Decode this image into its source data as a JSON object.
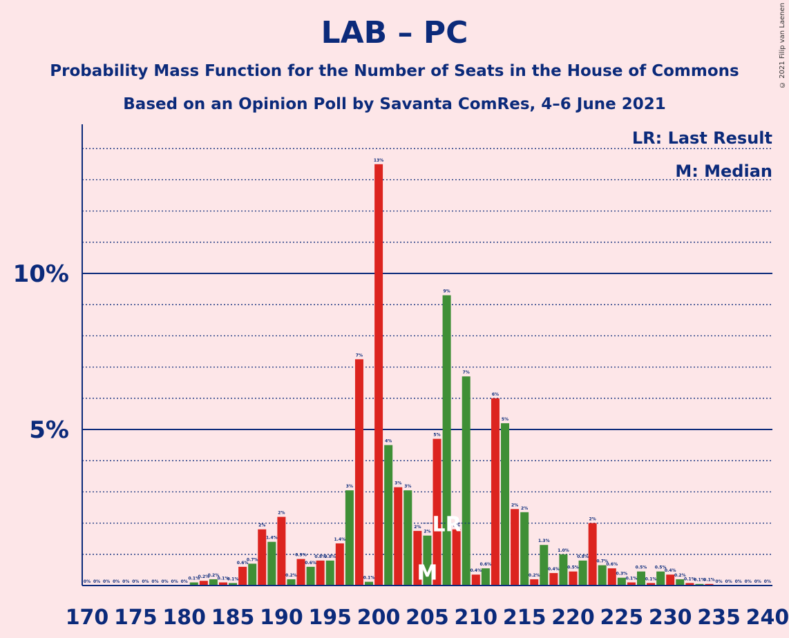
{
  "title": "LAB – PC",
  "subtitle1": "Probability Mass Function for the Number of Seats in the House of Commons",
  "subtitle2": "Based on an Opinion Poll by Savanta ComRes, 4–6 June 2021",
  "copyright": "© 2021 Filip van Laenen",
  "legend": {
    "last_result": "LR: Last Result",
    "median": "M: Median"
  },
  "colors": {
    "background": "#fde6e8",
    "text": "#0b2a7a",
    "red": "#dc241f",
    "green": "#3f8f36",
    "axis": "#0b2a7a"
  },
  "chart_data": {
    "type": "bar",
    "x": [
      170,
      171,
      172,
      173,
      174,
      175,
      176,
      177,
      178,
      179,
      180,
      181,
      182,
      183,
      184,
      185,
      186,
      187,
      188,
      189,
      190,
      191,
      192,
      193,
      194,
      195,
      196,
      197,
      198,
      199,
      200,
      201,
      202,
      203,
      204,
      205,
      206,
      207,
      208,
      209,
      210,
      211,
      212,
      213,
      214,
      215,
      216,
      217,
      218,
      219,
      220,
      221,
      222,
      223,
      224,
      225,
      226,
      227,
      228,
      229,
      230,
      231,
      232,
      233,
      234,
      235,
      236,
      237,
      238,
      239,
      240
    ],
    "values": [
      0,
      0,
      0,
      0,
      0,
      0,
      0,
      0,
      0,
      0,
      0,
      0.1,
      0.15,
      0.2,
      0.1,
      0.08,
      0.6,
      0.7,
      1.8,
      1.4,
      2.2,
      0.2,
      0.85,
      0.6,
      0.8,
      0.8,
      1.35,
      3.05,
      7.25,
      0.12,
      13.5,
      4.5,
      3.15,
      3.05,
      1.75,
      1.6,
      4.7,
      9.3,
      1.8,
      6.7,
      0.35,
      0.55,
      6.0,
      5.2,
      2.45,
      2.35,
      0.2,
      1.3,
      0.4,
      1.0,
      0.45,
      0.8,
      2.0,
      0.65,
      0.55,
      0.25,
      0.1,
      0.45,
      0.08,
      0.45,
      0.35,
      0.2,
      0.08,
      0.05,
      0.05,
      0,
      0,
      0,
      0,
      0,
      0
    ],
    "data_labels": [
      "0%",
      "0%",
      "0%",
      "0%",
      "0%",
      "0%",
      "0%",
      "0%",
      "0%",
      "0%",
      "0%",
      "0.1%",
      "0.2%",
      "0.2%",
      "0.1%",
      "0.1%",
      "0.6%",
      "0.7%",
      "2%",
      "1.4%",
      "2%",
      "0.2%",
      "0.9%",
      "0.6%",
      "0.8%",
      "0.8%",
      "1.4%",
      "3%",
      "7%",
      "0.1%",
      "13%",
      "4%",
      "3%",
      "3%",
      "2%",
      "2%",
      "5%",
      "9%",
      "2%",
      "7%",
      "0.4%",
      "0.6%",
      "6%",
      "5%",
      "2%",
      "2%",
      "0.2%",
      "1.3%",
      "0.4%",
      "1.0%",
      "0.5%",
      "0.8%",
      "2%",
      "0.7%",
      "0.6%",
      "0.3%",
      "0.1%",
      "0.5%",
      "0.1%",
      "0.5%",
      "0.4%",
      "0.2%",
      "0.1%",
      "0.1%",
      "0.1%",
      "0%",
      "0%",
      "0%",
      "0%",
      "0%",
      "0%"
    ],
    "x_ticks": [
      "170",
      "175",
      "180",
      "185",
      "190",
      "195",
      "200",
      "205",
      "210",
      "215",
      "220",
      "225",
      "230",
      "235",
      "240"
    ],
    "y_ticks": [
      "5%",
      "10%"
    ],
    "ylim": [
      0,
      14.7
    ],
    "xlim": [
      170,
      240
    ],
    "last_result_seat": 207,
    "last_result_label": "LR",
    "median_seat": 205,
    "median_label": "M",
    "grid": "dotted minor every 1%, solid major every 5%"
  }
}
